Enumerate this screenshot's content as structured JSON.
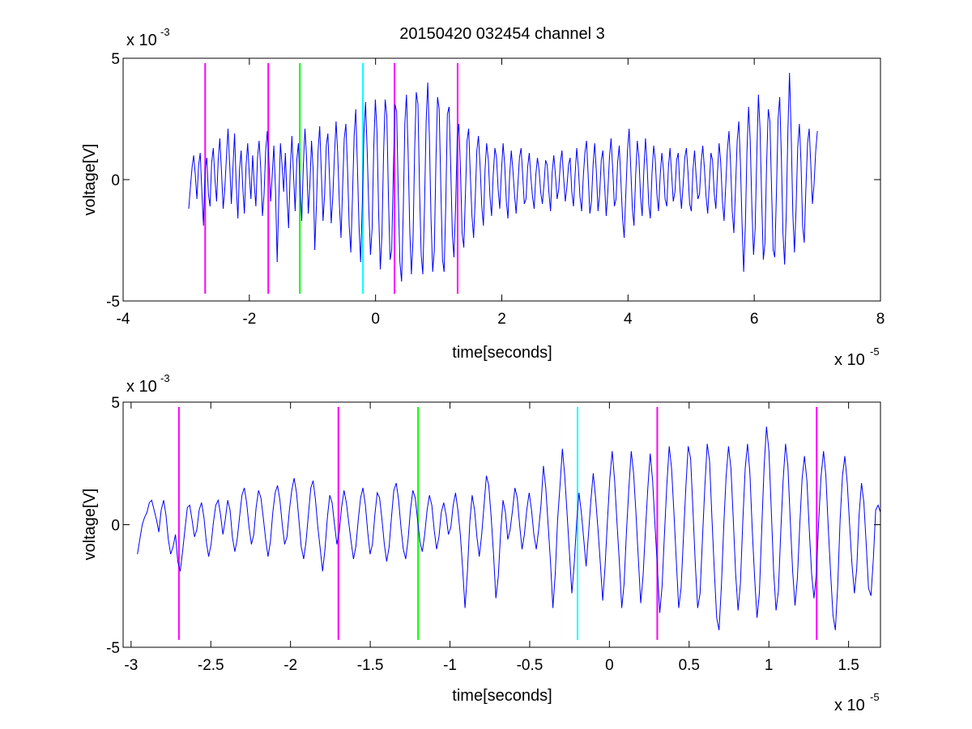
{
  "colors": {
    "signal": "#0000ff",
    "magenta": "#ff00ff",
    "green": "#00ff00",
    "cyan": "#00ffff",
    "axes": "#000000",
    "background": "#ffffff"
  },
  "figure": {
    "title": "20150420 032454 channel 3"
  },
  "chart_data": [
    {
      "type": "line",
      "title": "20150420 032454 channel 3",
      "xlabel": "time[seconds]",
      "ylabel": "voltage[V]",
      "x_scale_label": "x 10",
      "x_scale_exp": "-5",
      "y_scale_label": "x 10",
      "y_scale_exp": "-3",
      "xlim": [
        -4,
        8
      ],
      "ylim": [
        -5,
        5
      ],
      "xticks": [
        -4,
        -2,
        0,
        2,
        4,
        6,
        8
      ],
      "xtick_labels": [
        "-4",
        "-2",
        "0",
        "2",
        "4",
        "6",
        "8"
      ],
      "yticks": [
        -5,
        0,
        5
      ],
      "ytick_labels": [
        "-5",
        "0",
        "5"
      ],
      "grid": false,
      "legend": "none",
      "series": [
        {
          "color": "#0000ff",
          "x_start": -2.96,
          "x_end": 7.0,
          "values": [
            -1.2,
            -0.3,
            0.5,
            1.0,
            0.2,
            -0.8,
            0.6,
            1.1,
            -0.5,
            -1.9,
            0.4,
            0.9,
            -0.6,
            -1.1,
            0.7,
            1.3,
            0.0,
            -0.9,
            0.8,
            1.7,
            0.3,
            -1.2,
            -0.4,
            0.9,
            2.1,
            0.6,
            -1.0,
            0.5,
            1.9,
            -0.2,
            -1.6,
            0.4,
            1.2,
            -0.3,
            -1.4,
            0.6,
            1.5,
            0.2,
            -0.8,
            1.0,
            -0.2,
            -1.1,
            0.9,
            1.6,
            0.4,
            -1.5,
            -0.6,
            1.2,
            2.0,
            0.7,
            -0.9,
            0.2,
            1.4,
            -0.4,
            -3.4,
            -0.8,
            1.5,
            0.6,
            -0.5,
            1.1,
            -0.7,
            -2.0,
            0.4,
            1.8,
            0.2,
            -1.3,
            0.8,
            1.5,
            -0.3,
            -1.7,
            0.6,
            2.1,
            0.9,
            -1.4,
            -0.2,
            1.6,
            0.4,
            -2.9,
            -1.0,
            1.2,
            2.2,
            0.3,
            -1.7,
            -0.6,
            1.4,
            1.9,
            0.1,
            -1.8,
            -0.7,
            1.0,
            2.4,
            1.1,
            -1.0,
            -2.4,
            -0.3,
            1.7,
            2.3,
            0.4,
            -1.9,
            -3.0,
            -0.8,
            1.8,
            2.9,
            0.6,
            -1.9,
            -3.4,
            -1.0,
            1.9,
            3.2,
            1.2,
            -1.2,
            -3.1,
            -2.0,
            1.3,
            3.3,
            2.0,
            -1.4,
            -3.7,
            -2.3,
            1.0,
            3.3,
            2.6,
            -0.8,
            -3.3,
            -2.9,
            0.5,
            3.1,
            2.8,
            -0.6,
            -3.4,
            -4.2,
            -1.4,
            2.3,
            3.5,
            1.2,
            -2.1,
            -3.9,
            -2.5,
            1.2,
            3.6,
            3.1,
            -0.5,
            -3.1,
            -3.9,
            -1.1,
            2.4,
            4.0,
            1.8,
            -1.6,
            -3.8,
            -2.9,
            0.8,
            3.4,
            2.9,
            -0.4,
            -3.3,
            -3.8,
            -1.1,
            2.7,
            3.0,
            0.6,
            -2.2,
            -3.2,
            -1.1,
            1.7,
            2.3,
            0.4,
            -2.2,
            -2.8,
            -0.6,
            1.6,
            2.1,
            0.2,
            -1.5,
            -2.4,
            -0.8,
            1.2,
            1.8,
            0.5,
            -1.1,
            -1.9,
            0.4,
            1.5,
            0.8,
            -0.7,
            -1.5,
            0.2,
            1.3,
            0.9,
            -0.4,
            -1.2,
            0.3,
            1.5,
            0.6,
            -0.9,
            -1.6,
            0.1,
            1.2,
            0.4,
            -0.6,
            -1.4,
            -0.3,
            0.9,
            1.3,
            0.2,
            -1.0,
            -0.8,
            0.5,
            1.1,
            0.1,
            -0.7,
            -1.2,
            0.2,
            0.9,
            0.4,
            -0.5,
            -1.0,
            -0.2,
            0.8,
            0.6,
            -0.5,
            -1.3,
            0.3,
            1.0,
            0.2,
            -0.8,
            -0.4,
            0.7,
            1.2,
            0.1,
            -0.9,
            -0.3,
            0.6,
            0.9,
            -0.5,
            -1.1,
            0.2,
            1.3,
            0.5,
            -0.7,
            -1.3,
            0.1,
            1.1,
            1.6,
            0.2,
            -1.4,
            -0.9,
            0.6,
            1.5,
            0.3,
            -1.3,
            -0.6,
            0.8,
            1.2,
            -0.2,
            -1.5,
            -0.5,
            0.9,
            1.7,
            0.4,
            -1.1,
            -0.8,
            0.7,
            1.4,
            -0.1,
            -1.6,
            -2.4,
            -0.6,
            1.2,
            2.1,
            0.5,
            -1.2,
            -1.9,
            0.2,
            1.6,
            0.9,
            -0.7,
            -1.5,
            0.4,
            1.7,
            0.6,
            -1.0,
            -1.6,
            0.3,
            1.4,
            0.8,
            -0.6,
            -1.3,
            0.2,
            1.1,
            0.4,
            -0.8,
            -1.1,
            0.5,
            1.3,
            0.2,
            -0.9,
            -0.5,
            0.8,
            1.1,
            -0.3,
            -1.2,
            -0.2,
            0.9,
            1.3,
            0.3,
            -1.0,
            -1.3,
            0.4,
            1.2,
            0.1,
            -0.8,
            -0.6,
            0.7,
            1.4,
            0.5,
            -0.7,
            -1.4,
            -0.2,
            1.1,
            0.8,
            -0.6,
            -1.2,
            0.3,
            1.5,
            0.7,
            -0.9,
            -1.7,
            -0.3,
            1.2,
            2.0,
            0.6,
            -1.3,
            -2.2,
            -0.4,
            1.6,
            2.4,
            0.7,
            -1.8,
            -3.8,
            -1.9,
            1.2,
            3.0,
            1.6,
            -1.1,
            -3.1,
            -2.0,
            1.0,
            3.5,
            2.1,
            -0.9,
            -3.3,
            -2.6,
            0.6,
            2.9,
            2.4,
            -0.3,
            -2.9,
            -3.2,
            -0.5,
            2.5,
            3.4,
            1.0,
            -2.2,
            -3.5,
            -1.4,
            2.0,
            4.4,
            2.0,
            -1.4,
            -3.0,
            -1.2,
            1.3,
            2.3,
            0.7,
            -1.9,
            -2.6,
            -0.4,
            1.5,
            2.1,
            0.6,
            -1.0,
            -0.2,
            1.2,
            2.0
          ]
        }
      ],
      "markers": [
        {
          "x": -2.7,
          "color": "#ff00ff",
          "ymin": -4.7,
          "ymax": 4.8
        },
        {
          "x": -1.7,
          "color": "#ff00ff",
          "ymin": -4.7,
          "ymax": 4.8
        },
        {
          "x": -1.2,
          "color": "#00ff00",
          "ymin": -4.7,
          "ymax": 4.8
        },
        {
          "x": -0.2,
          "color": "#00ffff",
          "ymin": -4.7,
          "ymax": 4.8
        },
        {
          "x": 0.3,
          "color": "#ff00ff",
          "ymin": -4.7,
          "ymax": 4.8
        },
        {
          "x": 1.3,
          "color": "#ff00ff",
          "ymin": -4.7,
          "ymax": 4.8
        }
      ]
    },
    {
      "type": "line",
      "title": "",
      "xlabel": "time[seconds]",
      "ylabel": "voltage[V]",
      "x_scale_label": "x 10",
      "x_scale_exp": "-5",
      "y_scale_label": "x 10",
      "y_scale_exp": "-3",
      "xlim": [
        -3.05,
        1.7
      ],
      "ylim": [
        -5,
        5
      ],
      "xticks": [
        -3,
        -2.5,
        -2,
        -1.5,
        -1,
        -0.5,
        0,
        0.5,
        1,
        1.5
      ],
      "xtick_labels": [
        "-3",
        "-2.5",
        "-2",
        "-1.5",
        "-1",
        "-0.5",
        "0",
        "0.5",
        "1",
        "1.5"
      ],
      "yticks": [
        -5,
        0,
        5
      ],
      "ytick_labels": [
        "-5",
        "0",
        "5"
      ],
      "grid": false,
      "legend": "none",
      "series": [
        {
          "color": "#0000ff",
          "x_start": -2.96,
          "x_end": 1.7,
          "values": [
            -1.2,
            -0.6,
            0.0,
            0.3,
            0.5,
            0.9,
            1.0,
            0.6,
            0.2,
            -0.3,
            0.6,
            1.0,
            0.4,
            -0.6,
            -1.2,
            -0.9,
            -0.4,
            -1.5,
            -1.9,
            -1.1,
            -0.2,
            0.7,
            0.8,
            0.2,
            -0.5,
            -0.2,
            0.6,
            0.9,
            0.3,
            -0.7,
            -1.3,
            -0.8,
            0.1,
            0.8,
            1.0,
            0.4,
            -0.4,
            0.2,
            1.0,
            0.6,
            -0.5,
            -1.1,
            -0.6,
            0.3,
            1.2,
            1.5,
            0.9,
            -0.1,
            -0.8,
            -0.4,
            0.7,
            1.4,
            1.1,
            0.3,
            -0.6,
            -1.3,
            -0.7,
            0.5,
            1.3,
            1.6,
            1.0,
            0.0,
            -0.8,
            -0.5,
            0.6,
            1.4,
            1.9,
            1.3,
            0.2,
            -0.9,
            -1.4,
            -0.7,
            0.4,
            1.5,
            1.8,
            1.0,
            -0.1,
            -1.0,
            -1.9,
            -1.0,
            0.3,
            1.2,
            0.9,
            0.0,
            -0.8,
            -0.3,
            0.7,
            1.4,
            0.9,
            0.1,
            -0.7,
            -1.4,
            -0.9,
            0.2,
            1.1,
            1.5,
            0.8,
            -0.3,
            -1.2,
            -0.8,
            0.4,
            1.3,
            1.1,
            0.2,
            -0.8,
            -1.5,
            -0.9,
            0.3,
            1.4,
            1.7,
            1.0,
            -0.1,
            -1.0,
            -1.4,
            -0.6,
            0.6,
            1.4,
            1.1,
            0.2,
            -0.7,
            -1.1,
            -0.4,
            0.6,
            1.2,
            0.8,
            -0.2,
            -1.0,
            -0.5,
            0.5,
            0.9,
            0.4,
            -0.4,
            -0.1,
            0.8,
            1.3,
            0.6,
            -0.4,
            -1.8,
            -3.4,
            -1.9,
            0.1,
            1.2,
            0.6,
            -0.5,
            -1.3,
            -0.4,
            0.8,
            2.0,
            1.6,
            0.3,
            -1.2,
            -3.0,
            -2.1,
            -0.3,
            1.0,
            0.5,
            -0.6,
            -0.2,
            0.6,
            1.5,
            1.1,
            0.0,
            -1.0,
            -0.4,
            0.6,
            1.3,
            0.6,
            -0.4,
            -1.0,
            -0.2,
            0.8,
            2.4,
            1.5,
            0.0,
            -1.5,
            -3.4,
            -2.0,
            0.2,
            1.6,
            3.1,
            2.0,
            0.4,
            -1.2,
            -2.8,
            -1.6,
            0.1,
            1.3,
            0.5,
            -0.6,
            -1.7,
            -0.4,
            1.0,
            2.1,
            1.1,
            -0.2,
            -1.6,
            -3.1,
            -1.7,
            0.2,
            1.9,
            3.0,
            1.8,
            0.1,
            -1.5,
            -3.4,
            -2.4,
            -0.3,
            1.5,
            3.0,
            2.1,
            0.5,
            -1.4,
            -3.2,
            -2.1,
            -0.2,
            1.5,
            2.9,
            1.8,
            0.0,
            -1.7,
            -3.6,
            -2.5,
            -0.4,
            1.6,
            3.2,
            2.3,
            0.5,
            -1.5,
            -3.4,
            -2.6,
            -0.5,
            1.5,
            3.2,
            2.7,
            0.6,
            -1.6,
            -3.4,
            -2.8,
            -0.6,
            1.5,
            3.3,
            2.6,
            0.3,
            -1.9,
            -3.8,
            -4.3,
            -2.5,
            0.0,
            2.0,
            3.2,
            2.3,
            0.2,
            -2.0,
            -3.5,
            -2.4,
            0.1,
            2.3,
            3.3,
            2.1,
            -0.2,
            -2.2,
            -3.8,
            -2.8,
            -0.1,
            2.4,
            4.0,
            3.0,
            0.6,
            -1.9,
            -3.5,
            -2.7,
            -0.3,
            1.8,
            3.3,
            2.4,
            0.2,
            -1.9,
            -3.3,
            -2.2,
            0.0,
            1.9,
            2.8,
            1.8,
            -0.2,
            -2.0,
            -3.0,
            -2.0,
            0.2,
            2.0,
            3.0,
            2.0,
            -0.1,
            -2.0,
            -3.7,
            -4.3,
            -2.5,
            0.2,
            2.0,
            2.8,
            1.7,
            0.0,
            -1.6,
            -2.8,
            -1.8,
            0.4,
            1.7,
            0.9,
            -0.8,
            -2.6,
            -2.9,
            -1.4,
            0.6,
            0.8,
            0.5
          ]
        }
      ],
      "markers": [
        {
          "x": -2.7,
          "color": "#ff00ff",
          "ymin": -4.7,
          "ymax": 4.8
        },
        {
          "x": -1.7,
          "color": "#ff00ff",
          "ymin": -4.7,
          "ymax": 4.8
        },
        {
          "x": -1.2,
          "color": "#00ff00",
          "ymin": -4.7,
          "ymax": 4.8
        },
        {
          "x": -0.2,
          "color": "#00ffff",
          "ymin": -4.7,
          "ymax": 4.8
        },
        {
          "x": 0.3,
          "color": "#ff00ff",
          "ymin": -4.7,
          "ymax": 4.8
        },
        {
          "x": 1.3,
          "color": "#ff00ff",
          "ymin": -4.7,
          "ymax": 4.8
        }
      ]
    }
  ]
}
